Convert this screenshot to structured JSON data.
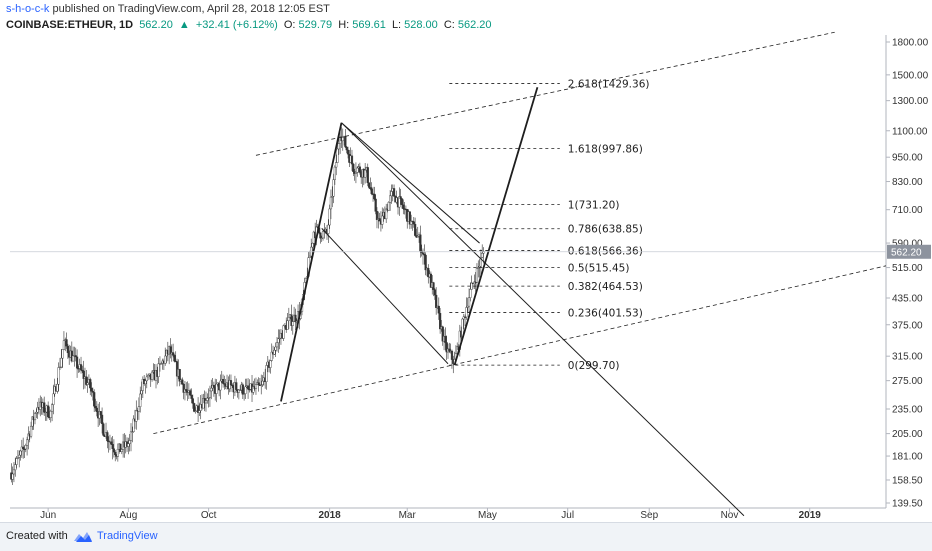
{
  "header": {
    "author": "s-h-o-c-k",
    "published": "published on TradingView.com, April 28, 2018 12:05 EST",
    "symbol": "COINBASE:ETHEUR, 1D",
    "last": "562.20",
    "change_arrow": "▲",
    "change": "+32.41 (+6.12%)",
    "o_label": "O:",
    "o_value": "529.79",
    "h_label": "H:",
    "h_value": "569.61",
    "l_label": "L:",
    "l_value": "528.00",
    "c_label": "C:",
    "c_value": "562.20"
  },
  "footer": {
    "created_with": "Created with",
    "brand": "TradingView"
  },
  "chart_data": {
    "type": "candlestick",
    "y_scale": "log",
    "ylim": [
      130,
      1900
    ],
    "y_ticks": [
      "1800.00",
      "1500.00",
      "1300.00",
      "1100.00",
      "950.00",
      "830.00",
      "710.00",
      "590.00",
      "515.00",
      "435.00",
      "375.00",
      "315.00",
      "275.00",
      "235.00",
      "205.00",
      "181.00",
      "158.50",
      "139.50"
    ],
    "y_tick_values": [
      1800,
      1500,
      1300,
      1100,
      950,
      830,
      710,
      590,
      515,
      435,
      375,
      315,
      275,
      235,
      205,
      181,
      158.5,
      139.5
    ],
    "last_price_label": "562.20",
    "last_price": 562.2,
    "x_ticks": [
      "Jun",
      "Aug",
      "Oct",
      "2018",
      "Mar",
      "May",
      "Jul",
      "Sep",
      "Nov",
      "2019"
    ],
    "x_tick_dates": [
      "2017-06-01",
      "2017-08-01",
      "2017-10-01",
      "2018-01-01",
      "2018-03-01",
      "2018-05-01",
      "2018-07-01",
      "2018-09-01",
      "2018-11-01",
      "2019-01-01"
    ],
    "x_range": [
      "2017-05-03",
      "2019-02-28"
    ],
    "fib_levels": [
      {
        "ratio": "2.618",
        "price": 1429.36,
        "label": "2.618(1429.36)"
      },
      {
        "ratio": "1.618",
        "price": 997.86,
        "label": "1.618(997.86)"
      },
      {
        "ratio": "1",
        "price": 731.2,
        "label": "1(731.20)"
      },
      {
        "ratio": "0.786",
        "price": 638.85,
        "label": "0.786(638.85)"
      },
      {
        "ratio": "0.618",
        "price": 566.36,
        "label": "0.618(566.36)"
      },
      {
        "ratio": "0.5",
        "price": 515.45,
        "label": "0.5(515.45)"
      },
      {
        "ratio": "0.382",
        "price": 464.53,
        "label": "0.382(464.53)"
      },
      {
        "ratio": "0.236",
        "price": 401.53,
        "label": "0.236(401.53)"
      },
      {
        "ratio": "0",
        "price": 299.7,
        "label": "0(299.70)"
      }
    ],
    "fib_start_date": "2018-04-02",
    "fib_end_date": "2018-06-25",
    "trend_lines": [
      {
        "name": "upper-dashed-channel",
        "style": "dashed",
        "from": {
          "date": "2017-11-06",
          "price": 960
        },
        "to": {
          "date": "2019-01-20",
          "price": 1900
        }
      },
      {
        "name": "lower-dashed-channel",
        "style": "dashed",
        "from": {
          "date": "2017-08-20",
          "price": 205
        },
        "to": {
          "date": "2019-02-28",
          "price": 520
        }
      },
      {
        "name": "impulse-up",
        "style": "solid-bold",
        "from": {
          "date": "2017-11-25",
          "price": 245
        },
        "to": {
          "date": "2018-01-10",
          "price": 1150
        }
      },
      {
        "name": "impulse-up-2",
        "style": "solid-bold",
        "from": {
          "date": "2018-04-06",
          "price": 300
        },
        "to": {
          "date": "2018-06-08",
          "price": 1400
        }
      },
      {
        "name": "falling-channel-top",
        "style": "solid",
        "from": {
          "date": "2018-01-10",
          "price": 1150
        },
        "to": {
          "date": "2018-04-25",
          "price": 590
        }
      },
      {
        "name": "falling-channel-bottom",
        "style": "solid",
        "from": {
          "date": "2017-12-26",
          "price": 640
        },
        "to": {
          "date": "2018-04-01",
          "price": 302
        }
      },
      {
        "name": "falling-trend-extension",
        "style": "solid",
        "from": {
          "date": "2018-01-10",
          "price": 1150
        },
        "to": {
          "date": "2018-11-12",
          "price": 130
        }
      }
    ],
    "price_path": [
      [
        "2017-05-04",
        165
      ],
      [
        "2017-05-14",
        190
      ],
      [
        "2017-05-24",
        240
      ],
      [
        "2017-06-03",
        230
      ],
      [
        "2017-06-13",
        340
      ],
      [
        "2017-06-23",
        300
      ],
      [
        "2017-07-03",
        265
      ],
      [
        "2017-07-13",
        210
      ],
      [
        "2017-07-23",
        185
      ],
      [
        "2017-08-02",
        195
      ],
      [
        "2017-08-12",
        270
      ],
      [
        "2017-08-22",
        285
      ],
      [
        "2017-09-01",
        325
      ],
      [
        "2017-09-11",
        270
      ],
      [
        "2017-09-21",
        235
      ],
      [
        "2017-10-01",
        255
      ],
      [
        "2017-10-11",
        270
      ],
      [
        "2017-10-21",
        265
      ],
      [
        "2017-10-31",
        260
      ],
      [
        "2017-11-10",
        265
      ],
      [
        "2017-11-20",
        330
      ],
      [
        "2017-11-30",
        380
      ],
      [
        "2017-12-10",
        400
      ],
      [
        "2017-12-20",
        630
      ],
      [
        "2017-12-30",
        620
      ],
      [
        "2018-01-09",
        1100
      ],
      [
        "2018-01-19",
        900
      ],
      [
        "2018-01-29",
        870
      ],
      [
        "2018-02-08",
        650
      ],
      [
        "2018-02-18",
        780
      ],
      [
        "2018-02-28",
        700
      ],
      [
        "2018-03-10",
        600
      ],
      [
        "2018-03-20",
        460
      ],
      [
        "2018-03-30",
        330
      ],
      [
        "2018-04-06",
        305
      ],
      [
        "2018-04-16",
        430
      ],
      [
        "2018-04-28",
        562
      ]
    ]
  }
}
